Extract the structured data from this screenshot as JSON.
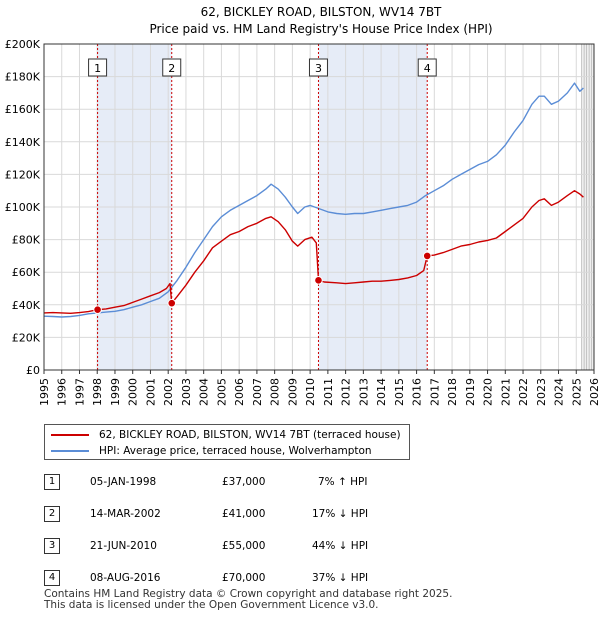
{
  "chart_data": {
    "type": "line",
    "title": "62, BICKLEY ROAD, BILSTON, WV14 7BT",
    "subtitle": "Price paid vs. HM Land Registry's House Price Index (HPI)",
    "xlabel": "",
    "ylabel": "",
    "xlim": [
      1995,
      2026
    ],
    "ylim": [
      0,
      200000
    ],
    "x_ticks": [
      "1995",
      "1996",
      "1997",
      "1998",
      "1999",
      "2000",
      "2001",
      "2002",
      "2003",
      "2004",
      "2005",
      "2006",
      "2007",
      "2008",
      "2009",
      "2010",
      "2011",
      "2012",
      "2013",
      "2014",
      "2015",
      "2016",
      "2017",
      "2018",
      "2019",
      "2020",
      "2021",
      "2022",
      "2023",
      "2024",
      "2025",
      "2026"
    ],
    "y_ticks": [
      {
        "value": 0,
        "label": "£0"
      },
      {
        "value": 20000,
        "label": "£20K"
      },
      {
        "value": 40000,
        "label": "£40K"
      },
      {
        "value": 60000,
        "label": "£60K"
      },
      {
        "value": 80000,
        "label": "£80K"
      },
      {
        "value": 100000,
        "label": "£100K"
      },
      {
        "value": 120000,
        "label": "£120K"
      },
      {
        "value": 140000,
        "label": "£140K"
      },
      {
        "value": 160000,
        "label": "£160K"
      },
      {
        "value": 180000,
        "label": "£180K"
      },
      {
        "value": 200000,
        "label": "£200K"
      }
    ],
    "grid": true,
    "forecast_start": 2025.3,
    "shaded_ranges": [
      [
        1998.02,
        2002.2
      ],
      [
        2010.47,
        2016.6
      ]
    ],
    "series": [
      {
        "name": "62, BICKLEY ROAD, BILSTON, WV14 7BT (terraced house)",
        "color": "#cc0000",
        "points": [
          [
            1995.0,
            35000
          ],
          [
            1995.5,
            35200
          ],
          [
            1996.0,
            35000
          ],
          [
            1996.5,
            34800
          ],
          [
            1997.0,
            35200
          ],
          [
            1997.5,
            35800
          ],
          [
            1998.02,
            37000
          ],
          [
            1998.5,
            37500
          ],
          [
            1999.0,
            38500
          ],
          [
            1999.5,
            39500
          ],
          [
            2000.0,
            41500
          ],
          [
            2000.5,
            43500
          ],
          [
            2001.0,
            45500
          ],
          [
            2001.5,
            47500
          ],
          [
            2001.9,
            50000
          ],
          [
            2002.1,
            53000
          ],
          [
            2002.2,
            41000
          ],
          [
            2002.5,
            45000
          ],
          [
            2003.0,
            52000
          ],
          [
            2003.5,
            60000
          ],
          [
            2004.0,
            67000
          ],
          [
            2004.5,
            75000
          ],
          [
            2005.0,
            79000
          ],
          [
            2005.5,
            83000
          ],
          [
            2006.0,
            85000
          ],
          [
            2006.5,
            88000
          ],
          [
            2007.0,
            90000
          ],
          [
            2007.5,
            93000
          ],
          [
            2007.8,
            94000
          ],
          [
            2008.2,
            91000
          ],
          [
            2008.6,
            86000
          ],
          [
            2009.0,
            79000
          ],
          [
            2009.3,
            76000
          ],
          [
            2009.7,
            80000
          ],
          [
            2010.1,
            81500
          ],
          [
            2010.35,
            78000
          ],
          [
            2010.47,
            55000
          ],
          [
            2010.8,
            54000
          ],
          [
            2011.5,
            53500
          ],
          [
            2012.0,
            53000
          ],
          [
            2012.5,
            53500
          ],
          [
            2013.0,
            54000
          ],
          [
            2013.5,
            54500
          ],
          [
            2014.0,
            54500
          ],
          [
            2014.5,
            55000
          ],
          [
            2015.0,
            55500
          ],
          [
            2015.5,
            56500
          ],
          [
            2016.0,
            58000
          ],
          [
            2016.4,
            61000
          ],
          [
            2016.6,
            70000
          ],
          [
            2017.0,
            70500
          ],
          [
            2017.5,
            72000
          ],
          [
            2018.0,
            74000
          ],
          [
            2018.5,
            76000
          ],
          [
            2019.0,
            77000
          ],
          [
            2019.5,
            78500
          ],
          [
            2020.0,
            79500
          ],
          [
            2020.5,
            81000
          ],
          [
            2021.0,
            85000
          ],
          [
            2021.5,
            89000
          ],
          [
            2022.0,
            93000
          ],
          [
            2022.5,
            100000
          ],
          [
            2022.9,
            104000
          ],
          [
            2023.2,
            105000
          ],
          [
            2023.6,
            101000
          ],
          [
            2024.0,
            103000
          ],
          [
            2024.5,
            107000
          ],
          [
            2024.9,
            110000
          ],
          [
            2025.2,
            108000
          ],
          [
            2025.4,
            106000
          ]
        ]
      },
      {
        "name": "HPI: Average price, terraced house, Wolverhampton",
        "color": "#5b8dd6",
        "points": [
          [
            1995.0,
            33000
          ],
          [
            1995.5,
            32800
          ],
          [
            1996.0,
            32500
          ],
          [
            1996.5,
            32800
          ],
          [
            1997.0,
            33500
          ],
          [
            1997.5,
            34500
          ],
          [
            1998.0,
            35000
          ],
          [
            1998.5,
            35500
          ],
          [
            1999.0,
            36000
          ],
          [
            1999.5,
            37000
          ],
          [
            2000.0,
            38500
          ],
          [
            2000.5,
            40000
          ],
          [
            2001.0,
            42000
          ],
          [
            2001.5,
            44000
          ],
          [
            2002.0,
            48000
          ],
          [
            2002.5,
            55000
          ],
          [
            2003.0,
            63000
          ],
          [
            2003.5,
            72000
          ],
          [
            2004.0,
            80000
          ],
          [
            2004.5,
            88000
          ],
          [
            2005.0,
            94000
          ],
          [
            2005.5,
            98000
          ],
          [
            2006.0,
            101000
          ],
          [
            2006.5,
            104000
          ],
          [
            2007.0,
            107000
          ],
          [
            2007.5,
            111000
          ],
          [
            2007.8,
            114000
          ],
          [
            2008.2,
            111000
          ],
          [
            2008.6,
            106000
          ],
          [
            2009.0,
            100000
          ],
          [
            2009.3,
            96000
          ],
          [
            2009.7,
            100000
          ],
          [
            2010.0,
            101000
          ],
          [
            2010.5,
            99000
          ],
          [
            2011.0,
            97000
          ],
          [
            2011.5,
            96000
          ],
          [
            2012.0,
            95500
          ],
          [
            2012.5,
            96000
          ],
          [
            2013.0,
            96000
          ],
          [
            2013.5,
            97000
          ],
          [
            2014.0,
            98000
          ],
          [
            2014.5,
            99000
          ],
          [
            2015.0,
            100000
          ],
          [
            2015.5,
            101000
          ],
          [
            2016.0,
            103000
          ],
          [
            2016.5,
            107000
          ],
          [
            2017.0,
            110000
          ],
          [
            2017.5,
            113000
          ],
          [
            2018.0,
            117000
          ],
          [
            2018.5,
            120000
          ],
          [
            2019.0,
            123000
          ],
          [
            2019.5,
            126000
          ],
          [
            2020.0,
            128000
          ],
          [
            2020.5,
            132000
          ],
          [
            2021.0,
            138000
          ],
          [
            2021.5,
            146000
          ],
          [
            2022.0,
            153000
          ],
          [
            2022.5,
            163000
          ],
          [
            2022.9,
            168000
          ],
          [
            2023.2,
            168000
          ],
          [
            2023.6,
            163000
          ],
          [
            2024.0,
            165000
          ],
          [
            2024.5,
            170000
          ],
          [
            2024.9,
            176000
          ],
          [
            2025.2,
            171000
          ],
          [
            2025.4,
            173000
          ]
        ]
      }
    ],
    "sales": [
      {
        "n": "1",
        "x": 1998.02,
        "price": 37000
      },
      {
        "n": "2",
        "x": 2002.2,
        "price": 41000
      },
      {
        "n": "3",
        "x": 2010.47,
        "price": 55000
      },
      {
        "n": "4",
        "x": 2016.6,
        "price": 70000
      }
    ]
  },
  "legend": {
    "property": "62, BICKLEY ROAD, BILSTON, WV14 7BT (terraced house)",
    "hpi": "HPI: Average price, terraced house, Wolverhampton"
  },
  "table": [
    {
      "n": "1",
      "date": "05-JAN-1998",
      "price": "£37,000",
      "delta": "7% ↑ HPI"
    },
    {
      "n": "2",
      "date": "14-MAR-2002",
      "price": "£41,000",
      "delta": "17% ↓ HPI"
    },
    {
      "n": "3",
      "date": "21-JUN-2010",
      "price": "£55,000",
      "delta": "44% ↓ HPI"
    },
    {
      "n": "4",
      "date": "08-AUG-2016",
      "price": "£70,000",
      "delta": "37% ↓ HPI"
    }
  ],
  "footer": {
    "line1": "Contains HM Land Registry data © Crown copyright and database right 2025.",
    "line2": "This data is licensed under the Open Government Licence v3.0."
  },
  "colors": {
    "property": "#cc0000",
    "hpi": "#5b8dd6",
    "shade": "#e6ecf7",
    "grid": "#d9d9d9"
  }
}
